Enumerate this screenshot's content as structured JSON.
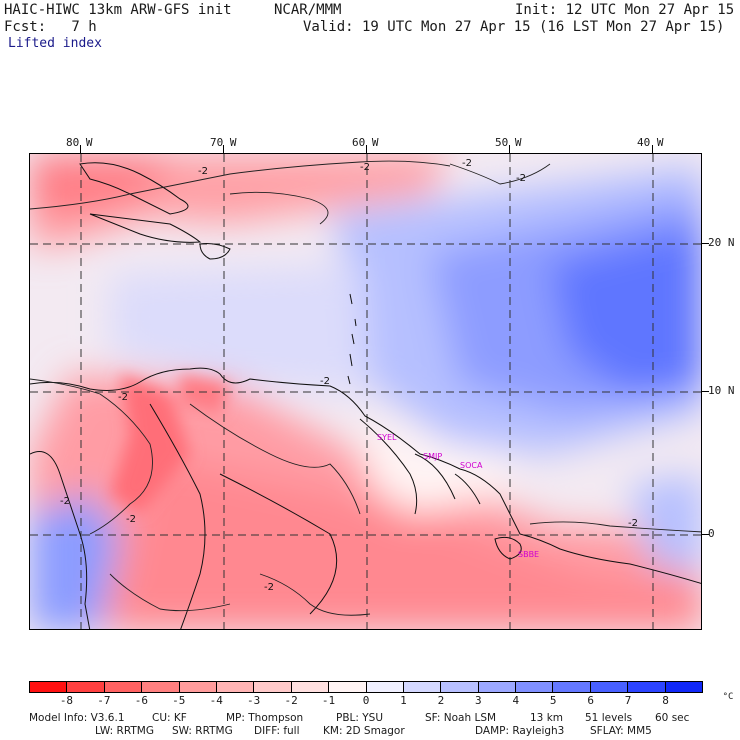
{
  "header": {
    "model": "HAIC-HIWC 13km ARW-GFS init",
    "org": "NCAR/MMM",
    "init": "Init: 12 UTC Mon 27 Apr 15",
    "fcst": "Fcst:   7 h",
    "valid": "Valid: 19 UTC Mon 27 Apr 15 (16 LST Mon 27 Apr 15)",
    "field": "Lifted index"
  },
  "map": {
    "lon_labels": [
      "80 W",
      "70 W",
      "60 W",
      "50 W",
      "40 W"
    ],
    "lat_labels": [
      "20 N",
      "10 N",
      "0"
    ],
    "contour_labels": [
      "-2",
      "-2",
      "-2",
      "-2",
      "-2",
      "-2",
      "-2",
      "-2",
      "-2",
      "-2"
    ],
    "stations": [
      "SYEL",
      "SMJP",
      "SOCA",
      "SBBE"
    ]
  },
  "colorbar": {
    "ticks": [
      "-8",
      "-7",
      "-6",
      "-5",
      "-4",
      "-3",
      "-2",
      "-1",
      "0",
      "1",
      "2",
      "3",
      "4",
      "5",
      "6",
      "7",
      "8"
    ],
    "unit": "°C",
    "colors": [
      "#ff1010",
      "#ff4040",
      "#ff6262",
      "#ff8080",
      "#ff9c9c",
      "#ffb4b4",
      "#ffcaca",
      "#ffe0e0",
      "#fff4f4",
      "#f0f0ff",
      "#d4d8ff",
      "#b8c0ff",
      "#9ca8ff",
      "#8090ff",
      "#6478ff",
      "#4860ff",
      "#2c44ff",
      "#1028f8"
    ]
  },
  "model_info": {
    "line1": [
      "Model Info: V3.6.1",
      "CU: KF",
      "MP: Thompson",
      "PBL: YSU",
      "SF: Noah LSM",
      "13 km",
      "51 levels",
      "60 sec"
    ],
    "line2": [
      "LW: RRTMG",
      "SW: RRTMG",
      "DIFF: full",
      "KM: 2D Smagor",
      "DAMP: Rayleigh3",
      "SFLAY: MM5"
    ]
  }
}
